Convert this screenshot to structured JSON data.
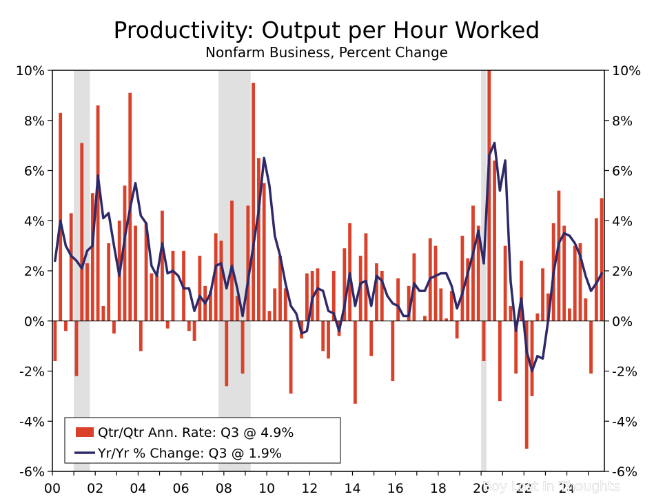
{
  "chart_data": {
    "type": "bar",
    "title": "Productivity: Output per Hour Worked",
    "subtitle": "Nonfarm Business, Percent Change",
    "ylim": [
      -6,
      10
    ],
    "yticks": [
      "10%",
      "8%",
      "6%",
      "4%",
      "2%",
      "0%",
      "-2%",
      "-4%",
      "-6%"
    ],
    "xlim": [
      2000.0,
      2025.75
    ],
    "xticks": [
      {
        "x": 2000,
        "label": "00"
      },
      {
        "x": 2002,
        "label": "02"
      },
      {
        "x": 2004,
        "label": "04"
      },
      {
        "x": 2006,
        "label": "06"
      },
      {
        "x": 2008,
        "label": "08"
      },
      {
        "x": 2010,
        "label": "10"
      },
      {
        "x": 2012,
        "label": "12"
      },
      {
        "x": 2014,
        "label": "14"
      },
      {
        "x": 2016,
        "label": "16"
      },
      {
        "x": 2018,
        "label": "18"
      },
      {
        "x": 2020,
        "label": "20"
      },
      {
        "x": 2022,
        "label": "22"
      },
      {
        "x": 2024,
        "label": "24"
      }
    ],
    "recessions": [
      [
        2001.0,
        2001.75
      ],
      [
        2007.75,
        2009.25
      ],
      [
        2020.0,
        2020.25
      ]
    ],
    "legend_position": "bottom-left",
    "series": [
      {
        "name": "Qtr/Qtr Ann. Rate: Q3 @ 4.9%",
        "type": "bar",
        "color": "#d9412b",
        "start": "2000Q1",
        "values": [
          -1.6,
          8.3,
          -0.4,
          4.3,
          -2.2,
          7.1,
          2.3,
          5.1,
          8.6,
          0.6,
          3.1,
          -0.5,
          4.0,
          5.4,
          9.1,
          3.8,
          -1.2,
          3.9,
          1.9,
          1.8,
          4.4,
          -0.3,
          2.8,
          0.0,
          2.8,
          -0.4,
          -0.8,
          2.6,
          1.4,
          1.2,
          3.5,
          3.2,
          -2.6,
          4.8,
          1.0,
          -2.1,
          4.6,
          9.5,
          6.5,
          5.5,
          0.4,
          1.3,
          2.6,
          1.3,
          -2.9,
          0.0,
          -0.7,
          1.9,
          2.0,
          2.1,
          -1.2,
          -1.5,
          2.0,
          -0.6,
          2.9,
          3.9,
          -3.3,
          2.6,
          3.5,
          -1.4,
          2.3,
          2.0,
          0.0,
          -2.4,
          1.7,
          0.0,
          1.4,
          2.7,
          0.0,
          0.2,
          3.3,
          3.0,
          1.3,
          0.1,
          1.2,
          -0.7,
          3.4,
          2.5,
          4.6,
          3.8,
          -1.6,
          10.4,
          6.4,
          -3.2,
          3.0,
          0.6,
          -2.1,
          2.4,
          -5.1,
          -3.0,
          0.3,
          2.1,
          1.1,
          3.9,
          5.2,
          3.8,
          0.5,
          3.0,
          3.1,
          0.9,
          -2.1,
          4.1,
          4.9
        ]
      },
      {
        "name": "Yr/Yr % Change: Q3 @ 1.9%",
        "type": "line",
        "color": "#2e2a6a",
        "start": "2000Q1",
        "values": [
          2.4,
          4.0,
          3.0,
          2.6,
          2.4,
          2.1,
          2.8,
          3.0,
          5.8,
          4.1,
          4.3,
          3.0,
          1.8,
          3.3,
          4.5,
          5.5,
          4.2,
          3.9,
          2.2,
          1.8,
          3.1,
          1.9,
          2.0,
          1.8,
          1.3,
          1.3,
          0.4,
          1.0,
          0.7,
          1.1,
          2.2,
          2.3,
          1.3,
          2.2,
          1.3,
          0.2,
          1.6,
          3.0,
          4.4,
          6.5,
          5.4,
          3.4,
          2.6,
          1.5,
          0.6,
          0.3,
          -0.5,
          -0.4,
          0.9,
          1.3,
          1.2,
          0.4,
          0.3,
          -0.4,
          0.6,
          1.9,
          0.6,
          1.5,
          1.6,
          0.6,
          1.8,
          1.6,
          1.0,
          0.7,
          0.6,
          0.2,
          0.2,
          1.5,
          1.2,
          1.2,
          1.7,
          1.8,
          1.9,
          1.9,
          1.4,
          0.5,
          1.1,
          1.9,
          2.7,
          3.6,
          2.3,
          6.6,
          7.1,
          5.2,
          6.4,
          1.6,
          -0.4,
          0.9,
          -1.2,
          -2.0,
          -1.4,
          -1.5,
          0.0,
          1.9,
          3.1,
          3.5,
          3.4,
          3.1,
          2.6,
          1.8,
          1.2,
          1.5,
          1.9
        ]
      }
    ]
  },
  "watermark": "Boy Lost In Thoughts"
}
